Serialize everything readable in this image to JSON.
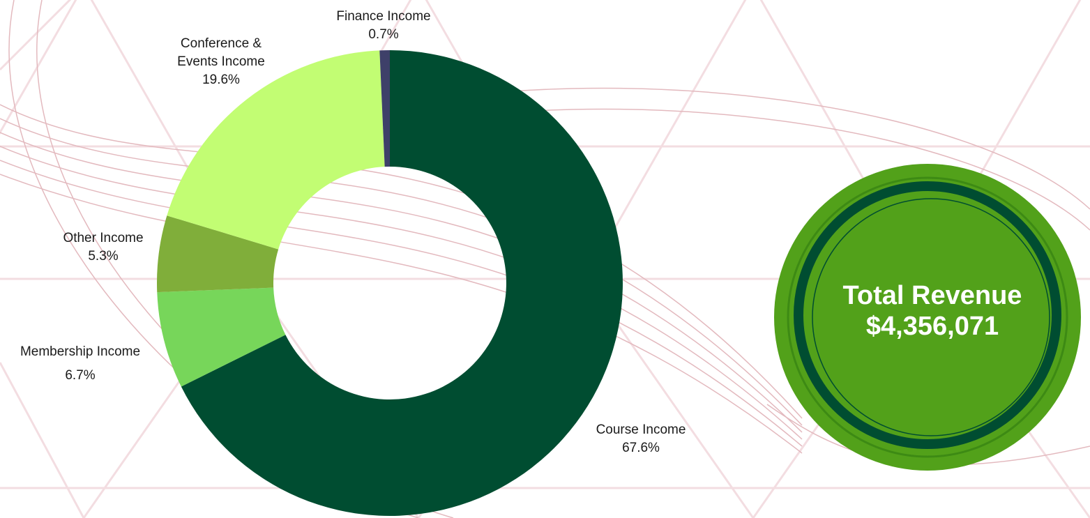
{
  "chart_data": {
    "type": "donut",
    "categories": [
      "Course Income",
      "Membership Income",
      "Other Income",
      "Conference & Events Income",
      "Finance Income"
    ],
    "values": [
      67.6,
      6.7,
      5.3,
      19.6,
      0.7
    ],
    "value_labels": [
      "67.6%",
      "6.7%",
      "5.3%",
      "19.6%",
      "0.7%"
    ],
    "colors": [
      "#004d31",
      "#77d65a",
      "#80ae3a",
      "#c2fd73",
      "#3e4069"
    ],
    "total_label": "Total Revenue",
    "total_value": "$4,356,071"
  }
}
